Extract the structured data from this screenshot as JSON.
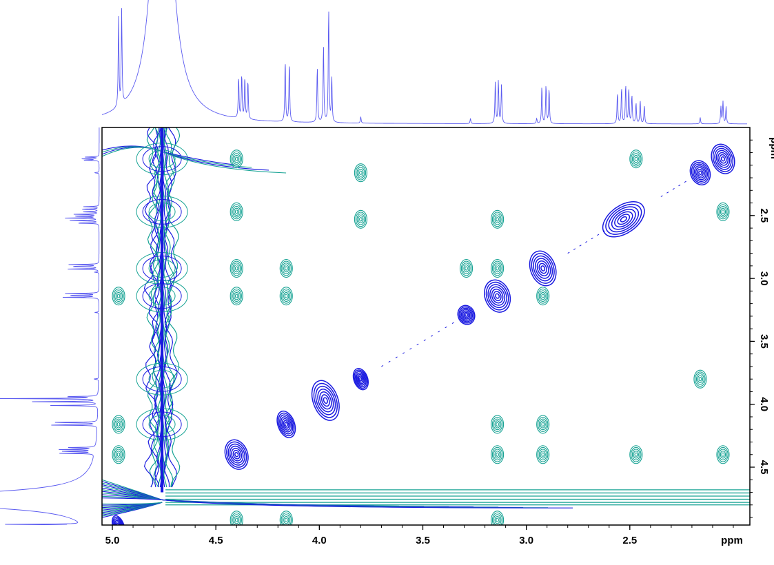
{
  "chart_data": {
    "type": "contour",
    "title": "",
    "xlabel": "ppm",
    "ylabel": "ppm",
    "xlim": [
      5.05,
      1.92
    ],
    "ylim": [
      1.8,
      4.96
    ],
    "x_ticks": [
      "5.0",
      "4.5",
      "4.0",
      "3.5",
      "3.0",
      "2.5"
    ],
    "x_tick_values": [
      5.0,
      4.5,
      4.0,
      3.5,
      3.0,
      2.5
    ],
    "y_ticks": [
      "2.5",
      "3.0",
      "3.5",
      "4.0",
      "4.5"
    ],
    "y_tick_values": [
      2.5,
      3.0,
      3.5,
      4.0,
      4.5
    ],
    "grid": false,
    "legend": "none",
    "colors": {
      "positive": "#1a1ae0",
      "negative": "#17a394",
      "projection": "#5a5af0"
    },
    "projection_peaks": [
      {
        "ppm": 4.97,
        "height": 0.68
      },
      {
        "ppm": 4.955,
        "height": 0.72
      },
      {
        "ppm": 4.39,
        "height": 0.32
      },
      {
        "ppm": 4.375,
        "height": 0.34
      },
      {
        "ppm": 4.36,
        "height": 0.32
      },
      {
        "ppm": 4.345,
        "height": 0.3
      },
      {
        "ppm": 4.165,
        "height": 0.48
      },
      {
        "ppm": 4.145,
        "height": 0.46
      },
      {
        "ppm": 4.01,
        "height": 0.43
      },
      {
        "ppm": 3.98,
        "height": 0.6
      },
      {
        "ppm": 3.955,
        "height": 0.88
      },
      {
        "ppm": 3.94,
        "height": 0.35
      },
      {
        "ppm": 3.8,
        "height": 0.05
      },
      {
        "ppm": 3.27,
        "height": 0.04
      },
      {
        "ppm": 3.15,
        "height": 0.32
      },
      {
        "ppm": 3.135,
        "height": 0.33
      },
      {
        "ppm": 3.12,
        "height": 0.3
      },
      {
        "ppm": 2.95,
        "height": 0.04
      },
      {
        "ppm": 2.925,
        "height": 0.29
      },
      {
        "ppm": 2.905,
        "height": 0.3
      },
      {
        "ppm": 2.89,
        "height": 0.27
      },
      {
        "ppm": 2.56,
        "height": 0.24
      },
      {
        "ppm": 2.54,
        "height": 0.28
      },
      {
        "ppm": 2.52,
        "height": 0.3
      },
      {
        "ppm": 2.505,
        "height": 0.27
      },
      {
        "ppm": 2.49,
        "height": 0.22
      },
      {
        "ppm": 2.47,
        "height": 0.16
      },
      {
        "ppm": 2.45,
        "height": 0.18
      },
      {
        "ppm": 2.43,
        "height": 0.14
      },
      {
        "ppm": 2.16,
        "height": 0.05
      },
      {
        "ppm": 2.06,
        "height": 0.13
      },
      {
        "ppm": 2.05,
        "height": 0.17
      },
      {
        "ppm": 2.035,
        "height": 0.13
      }
    ],
    "solvent_peak": {
      "ppm": 4.76,
      "height": 3.0,
      "width": 0.045
    },
    "diagonal_peaks": [
      {
        "x": 4.97,
        "y": 4.97
      },
      {
        "x": 4.4,
        "y": 4.4
      },
      {
        "x": 4.16,
        "y": 4.16
      },
      {
        "x": 3.97,
        "y": 3.97
      },
      {
        "x": 3.8,
        "y": 3.8
      },
      {
        "x": 3.29,
        "y": 3.29
      },
      {
        "x": 3.14,
        "y": 3.14
      },
      {
        "x": 2.92,
        "y": 2.92
      },
      {
        "x": 2.53,
        "y": 2.53
      },
      {
        "x": 2.16,
        "y": 2.16
      },
      {
        "x": 2.05,
        "y": 2.05
      }
    ],
    "cross_peaks": [
      {
        "x": 4.4,
        "y": 2.05
      },
      {
        "x": 4.4,
        "y": 2.47
      },
      {
        "x": 4.4,
        "y": 2.92
      },
      {
        "x": 4.4,
        "y": 3.14
      },
      {
        "x": 4.16,
        "y": 2.92
      },
      {
        "x": 4.16,
        "y": 3.14
      },
      {
        "x": 3.8,
        "y": 2.16
      },
      {
        "x": 3.8,
        "y": 2.53
      },
      {
        "x": 3.14,
        "y": 2.53
      },
      {
        "x": 3.14,
        "y": 2.92
      },
      {
        "x": 2.92,
        "y": 3.14
      },
      {
        "x": 3.29,
        "y": 2.92
      },
      {
        "x": 2.47,
        "y": 2.05
      },
      {
        "x": 2.05,
        "y": 2.47
      },
      {
        "x": 3.14,
        "y": 4.4
      },
      {
        "x": 2.92,
        "y": 4.4
      },
      {
        "x": 2.47,
        "y": 4.4
      },
      {
        "x": 2.05,
        "y": 4.4
      },
      {
        "x": 3.14,
        "y": 4.16
      },
      {
        "x": 2.92,
        "y": 4.16
      },
      {
        "x": 4.97,
        "y": 3.14
      },
      {
        "x": 4.97,
        "y": 4.16
      },
      {
        "x": 4.97,
        "y": 4.4
      },
      {
        "x": 4.4,
        "y": 4.92
      },
      {
        "x": 4.16,
        "y": 4.92
      },
      {
        "x": 3.14,
        "y": 4.92
      },
      {
        "x": 2.16,
        "y": 3.8
      }
    ]
  }
}
